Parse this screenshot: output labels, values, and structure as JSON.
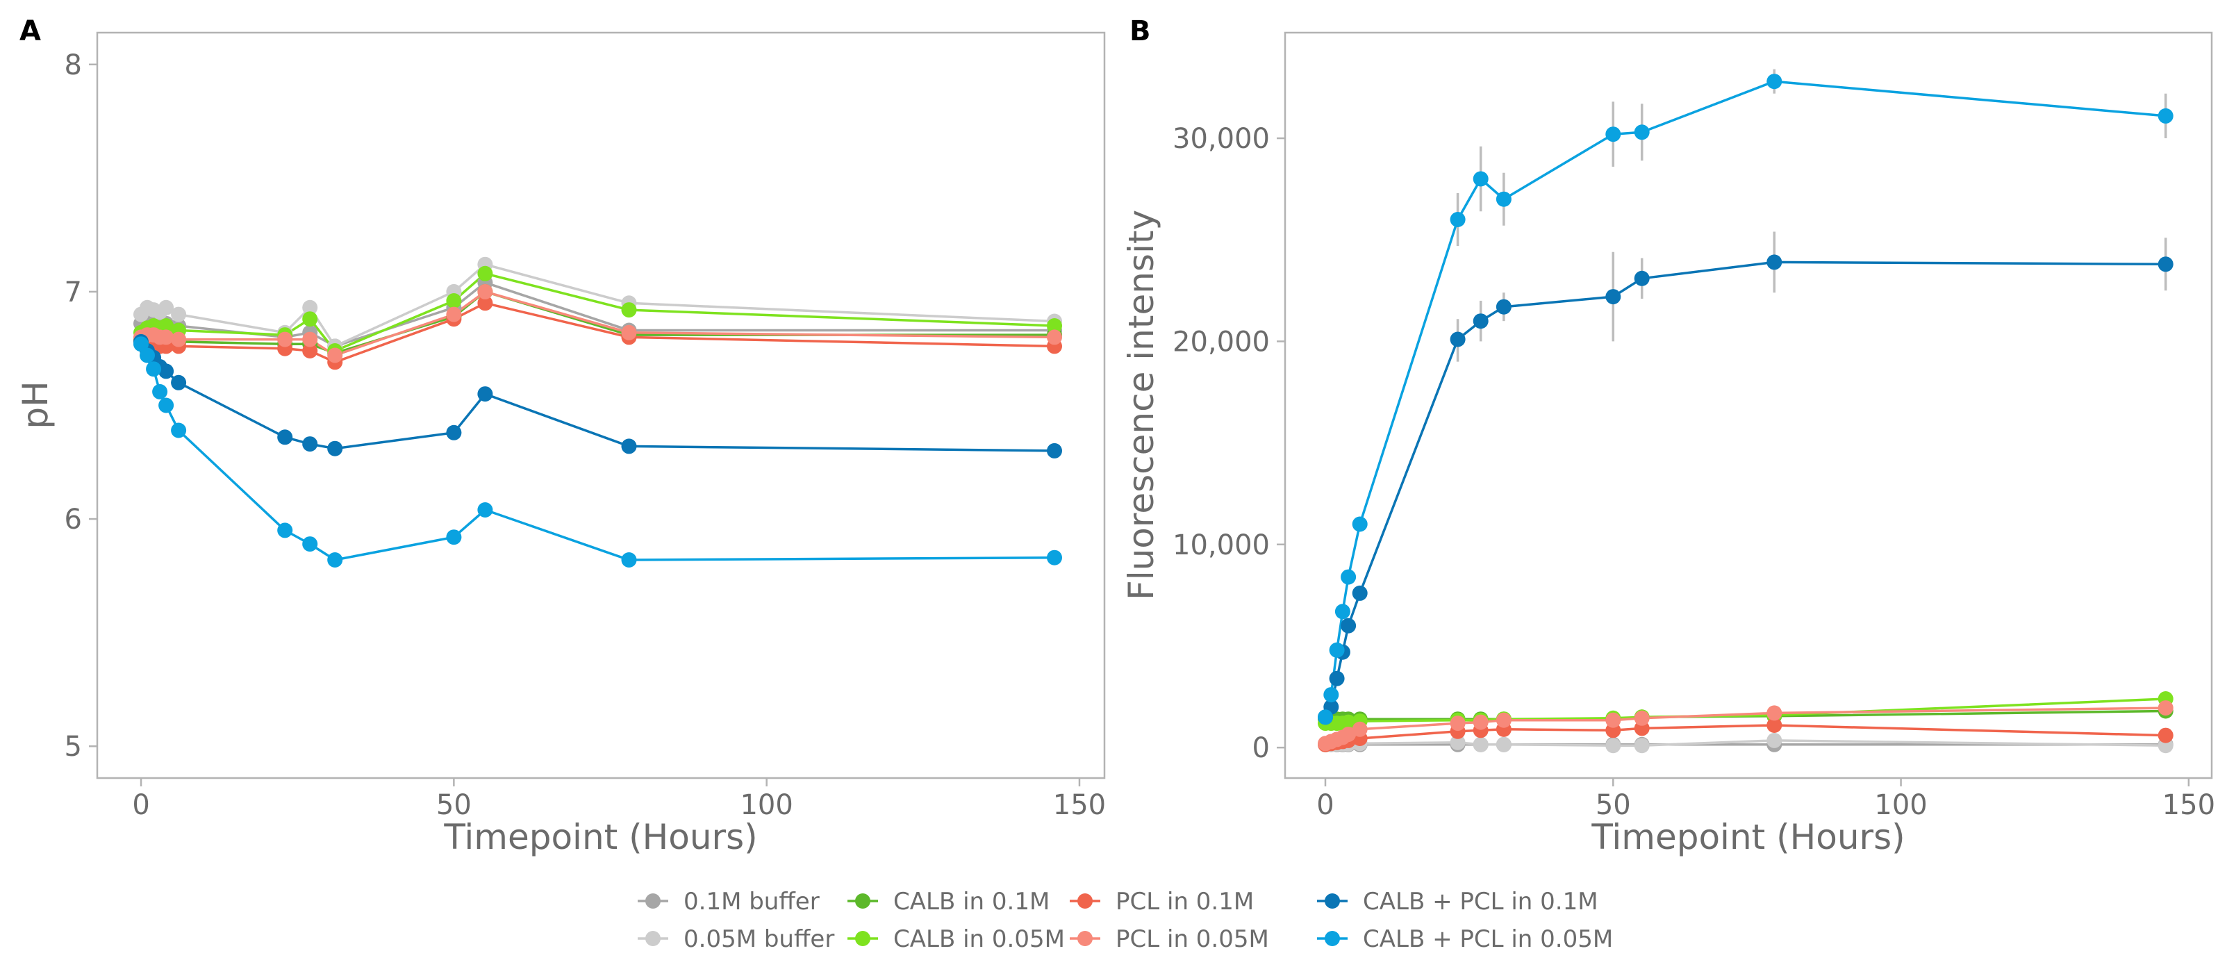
{
  "chart_data": [
    {
      "type": "line",
      "panel_label": "A",
      "xlabel": "Timepoint (Hours)",
      "ylabel": "pH",
      "xlim": [
        -7,
        154
      ],
      "ylim": [
        4.86,
        8.14
      ],
      "xticks": [
        0,
        50,
        100,
        150
      ],
      "yticks": [
        5,
        6,
        7,
        8
      ],
      "grid": false,
      "x": [
        0,
        1,
        2,
        3,
        4,
        6,
        23,
        27,
        31,
        50,
        55,
        78,
        146
      ],
      "series": [
        {
          "name": "0.1M buffer",
          "values": [
            6.86,
            6.88,
            6.87,
            6.86,
            6.86,
            6.85,
            6.8,
            6.82,
            6.76,
            6.93,
            7.04,
            6.83,
            6.83
          ]
        },
        {
          "name": "0.05M buffer",
          "values": [
            6.9,
            6.93,
            6.92,
            6.91,
            6.93,
            6.9,
            6.82,
            6.93,
            6.76,
            7.0,
            7.12,
            6.95,
            6.87
          ]
        },
        {
          "name": "CALB in 0.1M",
          "values": [
            6.79,
            6.8,
            6.8,
            6.79,
            6.79,
            6.78,
            6.77,
            6.77,
            6.73,
            6.89,
            7.0,
            6.81,
            6.81
          ]
        },
        {
          "name": "CALB in 0.05M",
          "values": [
            6.82,
            6.84,
            6.85,
            6.84,
            6.85,
            6.83,
            6.81,
            6.88,
            6.74,
            6.96,
            7.08,
            6.92,
            6.85
          ]
        },
        {
          "name": "PCL in 0.1M",
          "values": [
            6.78,
            6.78,
            6.77,
            6.76,
            6.76,
            6.76,
            6.75,
            6.74,
            6.69,
            6.88,
            6.95,
            6.8,
            6.76
          ]
        },
        {
          "name": "PCL in 0.05M",
          "values": [
            6.8,
            6.81,
            6.81,
            6.8,
            6.8,
            6.79,
            6.79,
            6.79,
            6.72,
            6.9,
            7.0,
            6.82,
            6.8
          ]
        },
        {
          "name": "CALB + PCL in 0.1M",
          "values": [
            6.78,
            6.74,
            6.71,
            6.67,
            6.65,
            6.6,
            6.36,
            6.33,
            6.31,
            6.38,
            6.55,
            6.32,
            6.3
          ]
        },
        {
          "name": "CALB + PCL in 0.05M",
          "values": [
            6.77,
            6.72,
            6.66,
            6.56,
            6.5,
            6.39,
            5.95,
            5.89,
            5.82,
            5.92,
            6.04,
            5.82,
            5.83
          ]
        }
      ]
    },
    {
      "type": "line",
      "panel_label": "B",
      "xlabel": "Timepoint (Hours)",
      "ylabel": "Fluorescence intensity",
      "xlim": [
        -7,
        154
      ],
      "ylim": [
        -1500,
        35200
      ],
      "xticks": [
        0,
        50,
        100,
        150
      ],
      "yticks": [
        0,
        10000,
        20000,
        30000
      ],
      "ytick_labels": [
        "0",
        "10,000",
        "20,000",
        "30,000"
      ],
      "grid": false,
      "x": [
        0,
        1,
        2,
        3,
        4,
        6,
        23,
        27,
        31,
        50,
        55,
        78,
        146
      ],
      "series": [
        {
          "name": "0.1M buffer",
          "values": [
            150,
            150,
            150,
            150,
            150,
            150,
            150,
            150,
            150,
            150,
            150,
            150,
            150
          ]
        },
        {
          "name": "0.05M buffer",
          "values": [
            150,
            150,
            180,
            180,
            180,
            200,
            250,
            150,
            150,
            100,
            100,
            350,
            100
          ]
        },
        {
          "name": "CALB in 0.1M",
          "values": [
            1400,
            1400,
            1400,
            1400,
            1400,
            1400,
            1400,
            1400,
            1400,
            1400,
            1500,
            1550,
            1800
          ]
        },
        {
          "name": "CALB in 0.05M",
          "values": [
            1200,
            1200,
            1200,
            1200,
            1250,
            1300,
            1350,
            1350,
            1400,
            1450,
            1500,
            1600,
            2400
          ]
        },
        {
          "name": "PCL in 0.1M",
          "values": [
            150,
            200,
            250,
            300,
            350,
            450,
            800,
            850,
            900,
            850,
            950,
            1100,
            600
          ]
        },
        {
          "name": "PCL in 0.05M",
          "values": [
            200,
            300,
            400,
            500,
            650,
            900,
            1200,
            1250,
            1350,
            1350,
            1450,
            1700,
            1950
          ]
        },
        {
          "name": "CALB + PCL in 0.1M",
          "values": [
            1500,
            2000,
            3400,
            4700,
            6000,
            7600,
            20100,
            21000,
            21700,
            22200,
            23100,
            23900,
            23800
          ]
        },
        {
          "name": "CALB + PCL in 0.05M",
          "values": [
            1500,
            2600,
            4800,
            6700,
            8400,
            11000,
            26000,
            28000,
            27000,
            30200,
            30300,
            32800,
            31100
          ]
        }
      ],
      "error_bars": [
        {
          "series": "CALB + PCL in 0.05M",
          "x": 23,
          "low": 24700,
          "high": 27300
        },
        {
          "series": "CALB + PCL in 0.05M",
          "x": 27,
          "low": 26400,
          "high": 29600
        },
        {
          "series": "CALB + PCL in 0.05M",
          "x": 31,
          "low": 25700,
          "high": 28300
        },
        {
          "series": "CALB + PCL in 0.05M",
          "x": 50,
          "low": 28600,
          "high": 31800
        },
        {
          "series": "CALB + PCL in 0.05M",
          "x": 55,
          "low": 28900,
          "high": 31700
        },
        {
          "series": "CALB + PCL in 0.05M",
          "x": 78,
          "low": 32200,
          "high": 33400
        },
        {
          "series": "CALB + PCL in 0.05M",
          "x": 146,
          "low": 30000,
          "high": 32200
        },
        {
          "series": "CALB + PCL in 0.1M",
          "x": 23,
          "low": 19000,
          "high": 21100
        },
        {
          "series": "CALB + PCL in 0.1M",
          "x": 27,
          "low": 20000,
          "high": 22000
        },
        {
          "series": "CALB + PCL in 0.1M",
          "x": 31,
          "low": 21000,
          "high": 22400
        },
        {
          "series": "CALB + PCL in 0.1M",
          "x": 50,
          "low": 20000,
          "high": 24400
        },
        {
          "series": "CALB + PCL in 0.1M",
          "x": 55,
          "low": 22100,
          "high": 24100
        },
        {
          "series": "CALB + PCL in 0.1M",
          "x": 78,
          "low": 22400,
          "high": 25400
        },
        {
          "series": "CALB + PCL in 0.1M",
          "x": 146,
          "low": 22500,
          "high": 25100
        }
      ]
    }
  ],
  "legend": {
    "placement": "bottom",
    "items": [
      {
        "label": "0.1M buffer",
        "color": "#a6a6a6"
      },
      {
        "label": "0.05M buffer",
        "color": "#cccccc"
      },
      {
        "label": "CALB in 0.1M",
        "color": "#5cb82a"
      },
      {
        "label": "CALB in 0.05M",
        "color": "#7ee21f"
      },
      {
        "label": "PCL in 0.1M",
        "color": "#f0644c"
      },
      {
        "label": "PCL in 0.05M",
        "color": "#f7897a"
      },
      {
        "label": "CALB + PCL in 0.1M",
        "color": "#0a75b5"
      },
      {
        "label": "CALB + PCL in 0.05M",
        "color": "#0aa2e0"
      }
    ]
  },
  "colors": {
    "axis": "#b3b3b3",
    "tick_text": "#6b6b6b",
    "error_bar": "#bdbdbd"
  }
}
